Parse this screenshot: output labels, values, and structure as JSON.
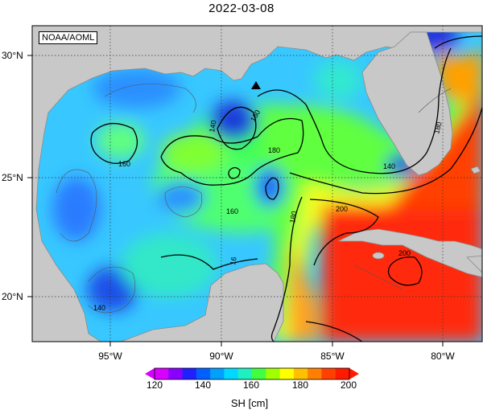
{
  "title": "2022-03-08",
  "credit": "NOAA/AOML",
  "lat_labels": [
    "30°N",
    "25°N",
    "20°N"
  ],
  "lon_labels": [
    "95°W",
    "90°W",
    "85°W",
    "80°W"
  ],
  "contour_labels": [
    "140",
    "160",
    "180",
    "140",
    "160",
    "180",
    "180",
    "200",
    "200",
    "16",
    "160",
    "140"
  ],
  "colorbar": {
    "title": "SH [cm]",
    "ticks": [
      "120",
      "140",
      "160",
      "180",
      "200"
    ],
    "colors": [
      "#d800ff",
      "#8a00ff",
      "#2020ff",
      "#0060ff",
      "#00a0ff",
      "#00d8ff",
      "#20f0c0",
      "#40ff40",
      "#a0ff00",
      "#ffff00",
      "#ffc000",
      "#ff8000",
      "#ff4000",
      "#ff1a00"
    ]
  },
  "colors": {
    "land": "#c8c8c8",
    "deep_blue": "#1a3cd8",
    "blue": "#2a7bff",
    "light_blue": "#38b8ff",
    "cyan": "#30e0f0",
    "teal": "#30f0b0",
    "green": "#40ff40",
    "yellow": "#f4ff20",
    "orange": "#ffa000",
    "red": "#ff2a10"
  },
  "marker": "triangle-marker"
}
